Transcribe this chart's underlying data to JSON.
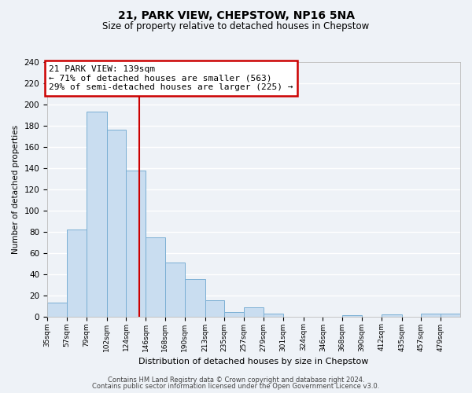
{
  "title": "21, PARK VIEW, CHEPSTOW, NP16 5NA",
  "subtitle": "Size of property relative to detached houses in Chepstow",
  "xlabel": "Distribution of detached houses by size in Chepstow",
  "ylabel": "Number of detached properties",
  "bin_labels": [
    "35sqm",
    "57sqm",
    "79sqm",
    "102sqm",
    "124sqm",
    "146sqm",
    "168sqm",
    "190sqm",
    "213sqm",
    "235sqm",
    "257sqm",
    "279sqm",
    "301sqm",
    "324sqm",
    "346sqm",
    "368sqm",
    "390sqm",
    "412sqm",
    "435sqm",
    "457sqm",
    "479sqm"
  ],
  "bin_edges": [
    35,
    57,
    79,
    102,
    124,
    146,
    168,
    190,
    213,
    235,
    257,
    279,
    301,
    324,
    346,
    368,
    390,
    412,
    435,
    457,
    479,
    501
  ],
  "counts": [
    13,
    82,
    193,
    176,
    138,
    75,
    51,
    35,
    15,
    4,
    9,
    3,
    0,
    0,
    0,
    1,
    0,
    2,
    0,
    3,
    3
  ],
  "bar_color": "#c9ddf0",
  "bar_edge_color": "#7aafd4",
  "annotation_title": "21 PARK VIEW: 139sqm",
  "annotation_line1": "← 71% of detached houses are smaller (563)",
  "annotation_line2": "29% of semi-detached houses are larger (225) →",
  "annotation_box_color": "#cc0000",
  "vline_color": "#cc0000",
  "vline_x": 139,
  "ylim": [
    0,
    240
  ],
  "yticks": [
    0,
    20,
    40,
    60,
    80,
    100,
    120,
    140,
    160,
    180,
    200,
    220,
    240
  ],
  "footer_line1": "Contains HM Land Registry data © Crown copyright and database right 2024.",
  "footer_line2": "Contains public sector information licensed under the Open Government Licence v3.0.",
  "background_color": "#eef2f7",
  "grid_color": "#ffffff"
}
